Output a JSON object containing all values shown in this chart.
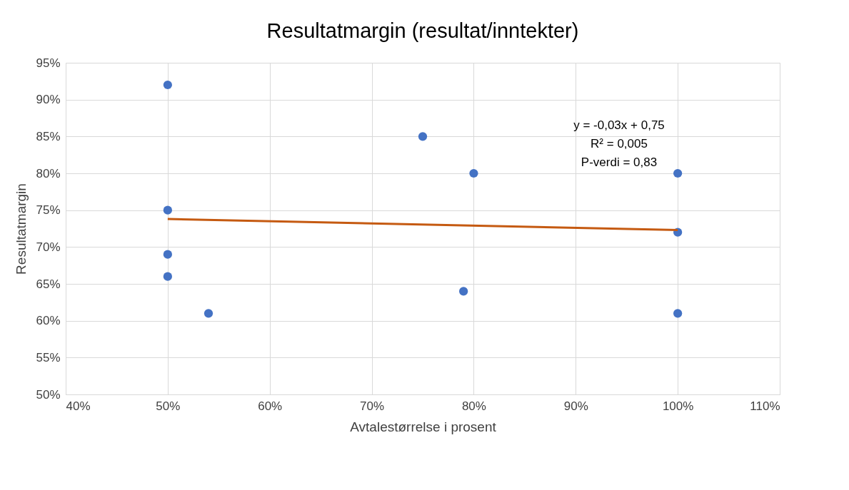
{
  "chart_data": {
    "type": "scatter",
    "title": "Resultatmargin (resultat/inntekter)",
    "xlabel": "Avtalestørrelse i prosent",
    "ylabel": "Resultatmargin",
    "series": [
      {
        "color": "#4472c4",
        "marker": "circle",
        "x": [
          50,
          50,
          50,
          50,
          54,
          75,
          79,
          80,
          100,
          100,
          100
        ],
        "values": [
          92,
          75,
          69,
          66,
          61,
          85,
          64,
          80,
          80,
          72,
          61
        ]
      },
      {
        "type": "line",
        "color": "#c55a11",
        "marker": "none",
        "line_style": "solid",
        "x": [
          50,
          100
        ],
        "values": [
          73.8,
          72.3
        ]
      }
    ],
    "xlim": [
      40,
      110
    ],
    "ylim": [
      50,
      95
    ],
    "xticks": [
      {
        "value": 40,
        "label": "40%"
      },
      {
        "value": 50,
        "label": "50%"
      },
      {
        "value": 60,
        "label": "60%"
      },
      {
        "value": 70,
        "label": "70%"
      },
      {
        "value": 80,
        "label": "80%"
      },
      {
        "value": 90,
        "label": "90%"
      },
      {
        "value": 100,
        "label": "100%"
      },
      {
        "value": 110,
        "label": "110%"
      }
    ],
    "yticks": [
      {
        "value": 50,
        "label": "50%"
      },
      {
        "value": 55,
        "label": "55%"
      },
      {
        "value": 60,
        "label": "60%"
      },
      {
        "value": 65,
        "label": "65%"
      },
      {
        "value": 70,
        "label": "70%"
      },
      {
        "value": 75,
        "label": "75%"
      },
      {
        "value": 80,
        "label": "80%"
      },
      {
        "value": 85,
        "label": "85%"
      },
      {
        "value": 90,
        "label": "90%"
      },
      {
        "value": 95,
        "label": "95%"
      }
    ],
    "annotations": [
      "y = -0,03x + 0,75",
      "R² = 0,005",
      "P-verdi = 0,83"
    ],
    "grid": true
  }
}
